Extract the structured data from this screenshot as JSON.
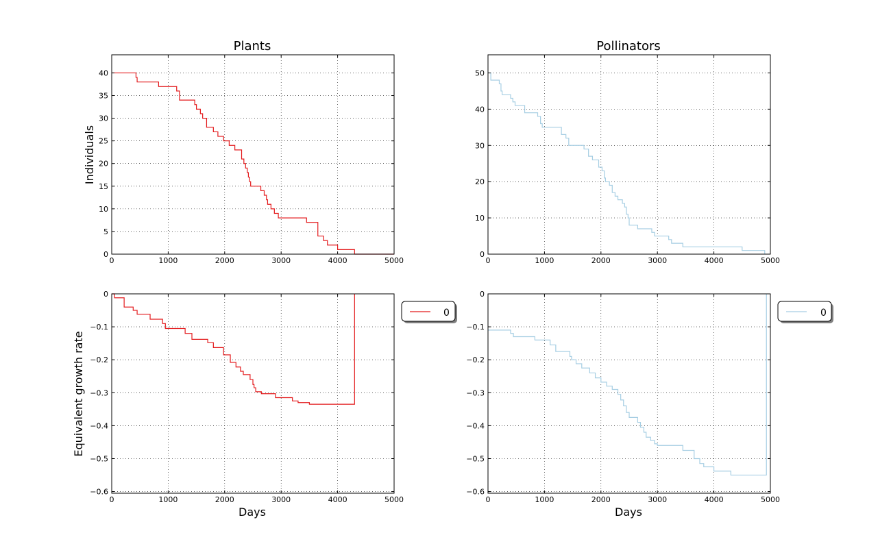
{
  "colors": {
    "plants": "#e31a1c",
    "pollinators": "#a6cee3",
    "grid": "#000000",
    "axis": "#000000"
  },
  "chart_data": [
    {
      "type": "line",
      "title": "Plants",
      "xlabel": "",
      "ylabel": "Individuals",
      "xlim": [
        0,
        5000
      ],
      "ylim": [
        0,
        44
      ],
      "xticks": [
        0,
        1000,
        2000,
        3000,
        4000,
        5000
      ],
      "yticks": [
        0,
        5,
        10,
        15,
        20,
        25,
        30,
        35,
        40
      ],
      "grid": true,
      "step": true,
      "series": [
        {
          "color": "plants",
          "x": [
            0,
            400,
            430,
            450,
            830,
            1100,
            1150,
            1200,
            1430,
            1470,
            1500,
            1570,
            1610,
            1680,
            1800,
            1880,
            1980,
            2080,
            2180,
            2300,
            2340,
            2370,
            2400,
            2420,
            2440,
            2460,
            2500,
            2640,
            2700,
            2740,
            2760,
            2820,
            2880,
            2950,
            3000,
            3450,
            3650,
            3750,
            3820,
            4000,
            4300,
            5000
          ],
          "y": [
            40,
            40,
            39,
            38,
            37,
            37,
            36,
            34,
            34,
            33,
            32,
            31,
            30,
            28,
            27,
            26,
            25,
            24,
            23,
            21,
            20,
            19,
            18,
            17,
            16,
            15,
            15,
            14,
            13,
            12,
            11,
            10,
            9,
            8,
            8,
            7,
            4,
            3,
            2,
            1,
            0,
            0
          ]
        }
      ]
    },
    {
      "type": "line",
      "title": "Pollinators",
      "xlabel": "",
      "ylabel": "",
      "xlim": [
        0,
        5000
      ],
      "ylim": [
        0,
        55
      ],
      "xticks": [
        0,
        1000,
        2000,
        3000,
        4000,
        5000
      ],
      "yticks": [
        0,
        10,
        20,
        30,
        40,
        50
      ],
      "grid": true,
      "step": true,
      "series": [
        {
          "color": "pollinators",
          "x": [
            0,
            50,
            200,
            230,
            250,
            280,
            400,
            440,
            480,
            650,
            880,
            930,
            960,
            1000,
            1300,
            1380,
            1430,
            1700,
            1780,
            1850,
            1960,
            2020,
            2060,
            2080,
            2100,
            2150,
            2200,
            2250,
            2300,
            2380,
            2420,
            2450,
            2480,
            2500,
            2650,
            2900,
            2950,
            3000,
            3200,
            3250,
            3450,
            4500,
            4900
          ],
          "y": [
            50,
            48,
            47,
            45,
            44,
            44,
            43,
            42,
            41,
            39,
            38,
            36,
            35,
            35,
            33,
            32,
            30,
            29,
            27,
            26,
            24,
            23,
            21,
            20,
            20,
            19,
            17,
            16,
            15,
            14,
            13,
            11,
            10,
            8,
            7,
            6,
            5,
            5,
            4,
            3,
            2,
            1,
            0
          ]
        }
      ]
    },
    {
      "type": "line",
      "title": "",
      "xlabel": "Days",
      "ylabel": "Equivalent growth rate",
      "xlim": [
        0,
        5000
      ],
      "ylim": [
        -0.605,
        0.0
      ],
      "xticks": [
        0,
        1000,
        2000,
        3000,
        4000,
        5000
      ],
      "yticks": [
        0.0,
        -0.1,
        -0.2,
        -0.3,
        -0.4,
        -0.5,
        -0.6
      ],
      "grid": true,
      "step": true,
      "legend": {
        "entries": [
          "0"
        ],
        "placement": "outside-right"
      },
      "series": [
        {
          "name": "0",
          "color": "plants",
          "x": [
            0,
            50,
            220,
            380,
            450,
            680,
            900,
            950,
            1300,
            1420,
            1700,
            1800,
            1980,
            2100,
            2200,
            2280,
            2330,
            2450,
            2500,
            2520,
            2550,
            2650,
            2900,
            3200,
            3300,
            3500,
            4300,
            4300
          ],
          "y": [
            0.0,
            -0.012,
            -0.04,
            -0.05,
            -0.062,
            -0.077,
            -0.09,
            -0.105,
            -0.12,
            -0.138,
            -0.148,
            -0.163,
            -0.185,
            -0.208,
            -0.222,
            -0.235,
            -0.245,
            -0.26,
            -0.275,
            -0.285,
            -0.297,
            -0.303,
            -0.315,
            -0.325,
            -0.33,
            -0.335,
            -0.335,
            0.0
          ]
        }
      ]
    },
    {
      "type": "line",
      "title": "",
      "xlabel": "Days",
      "ylabel": "",
      "xlim": [
        0,
        5000
      ],
      "ylim": [
        -0.605,
        0.0
      ],
      "xticks": [
        0,
        1000,
        2000,
        3000,
        4000,
        5000
      ],
      "yticks": [
        0.0,
        -0.1,
        -0.2,
        -0.3,
        -0.4,
        -0.5,
        -0.6
      ],
      "grid": true,
      "step": true,
      "legend": {
        "entries": [
          "0"
        ],
        "placement": "outside-right"
      },
      "series": [
        {
          "name": "0",
          "color": "pollinators",
          "x": [
            0,
            400,
            450,
            830,
            1100,
            1200,
            1450,
            1480,
            1560,
            1660,
            1800,
            1900,
            2000,
            2100,
            2200,
            2300,
            2350,
            2400,
            2450,
            2500,
            2650,
            2700,
            2760,
            2800,
            2880,
            2950,
            3000,
            3450,
            3650,
            3750,
            3820,
            4000,
            4300,
            4900,
            4930
          ],
          "y": [
            -0.11,
            -0.12,
            -0.13,
            -0.14,
            -0.155,
            -0.175,
            -0.19,
            -0.2,
            -0.212,
            -0.225,
            -0.24,
            -0.255,
            -0.268,
            -0.28,
            -0.29,
            -0.305,
            -0.322,
            -0.34,
            -0.36,
            -0.375,
            -0.39,
            -0.405,
            -0.42,
            -0.435,
            -0.445,
            -0.455,
            -0.46,
            -0.475,
            -0.5,
            -0.515,
            -0.525,
            -0.538,
            -0.55,
            -0.55,
            0.0
          ]
        }
      ]
    }
  ]
}
